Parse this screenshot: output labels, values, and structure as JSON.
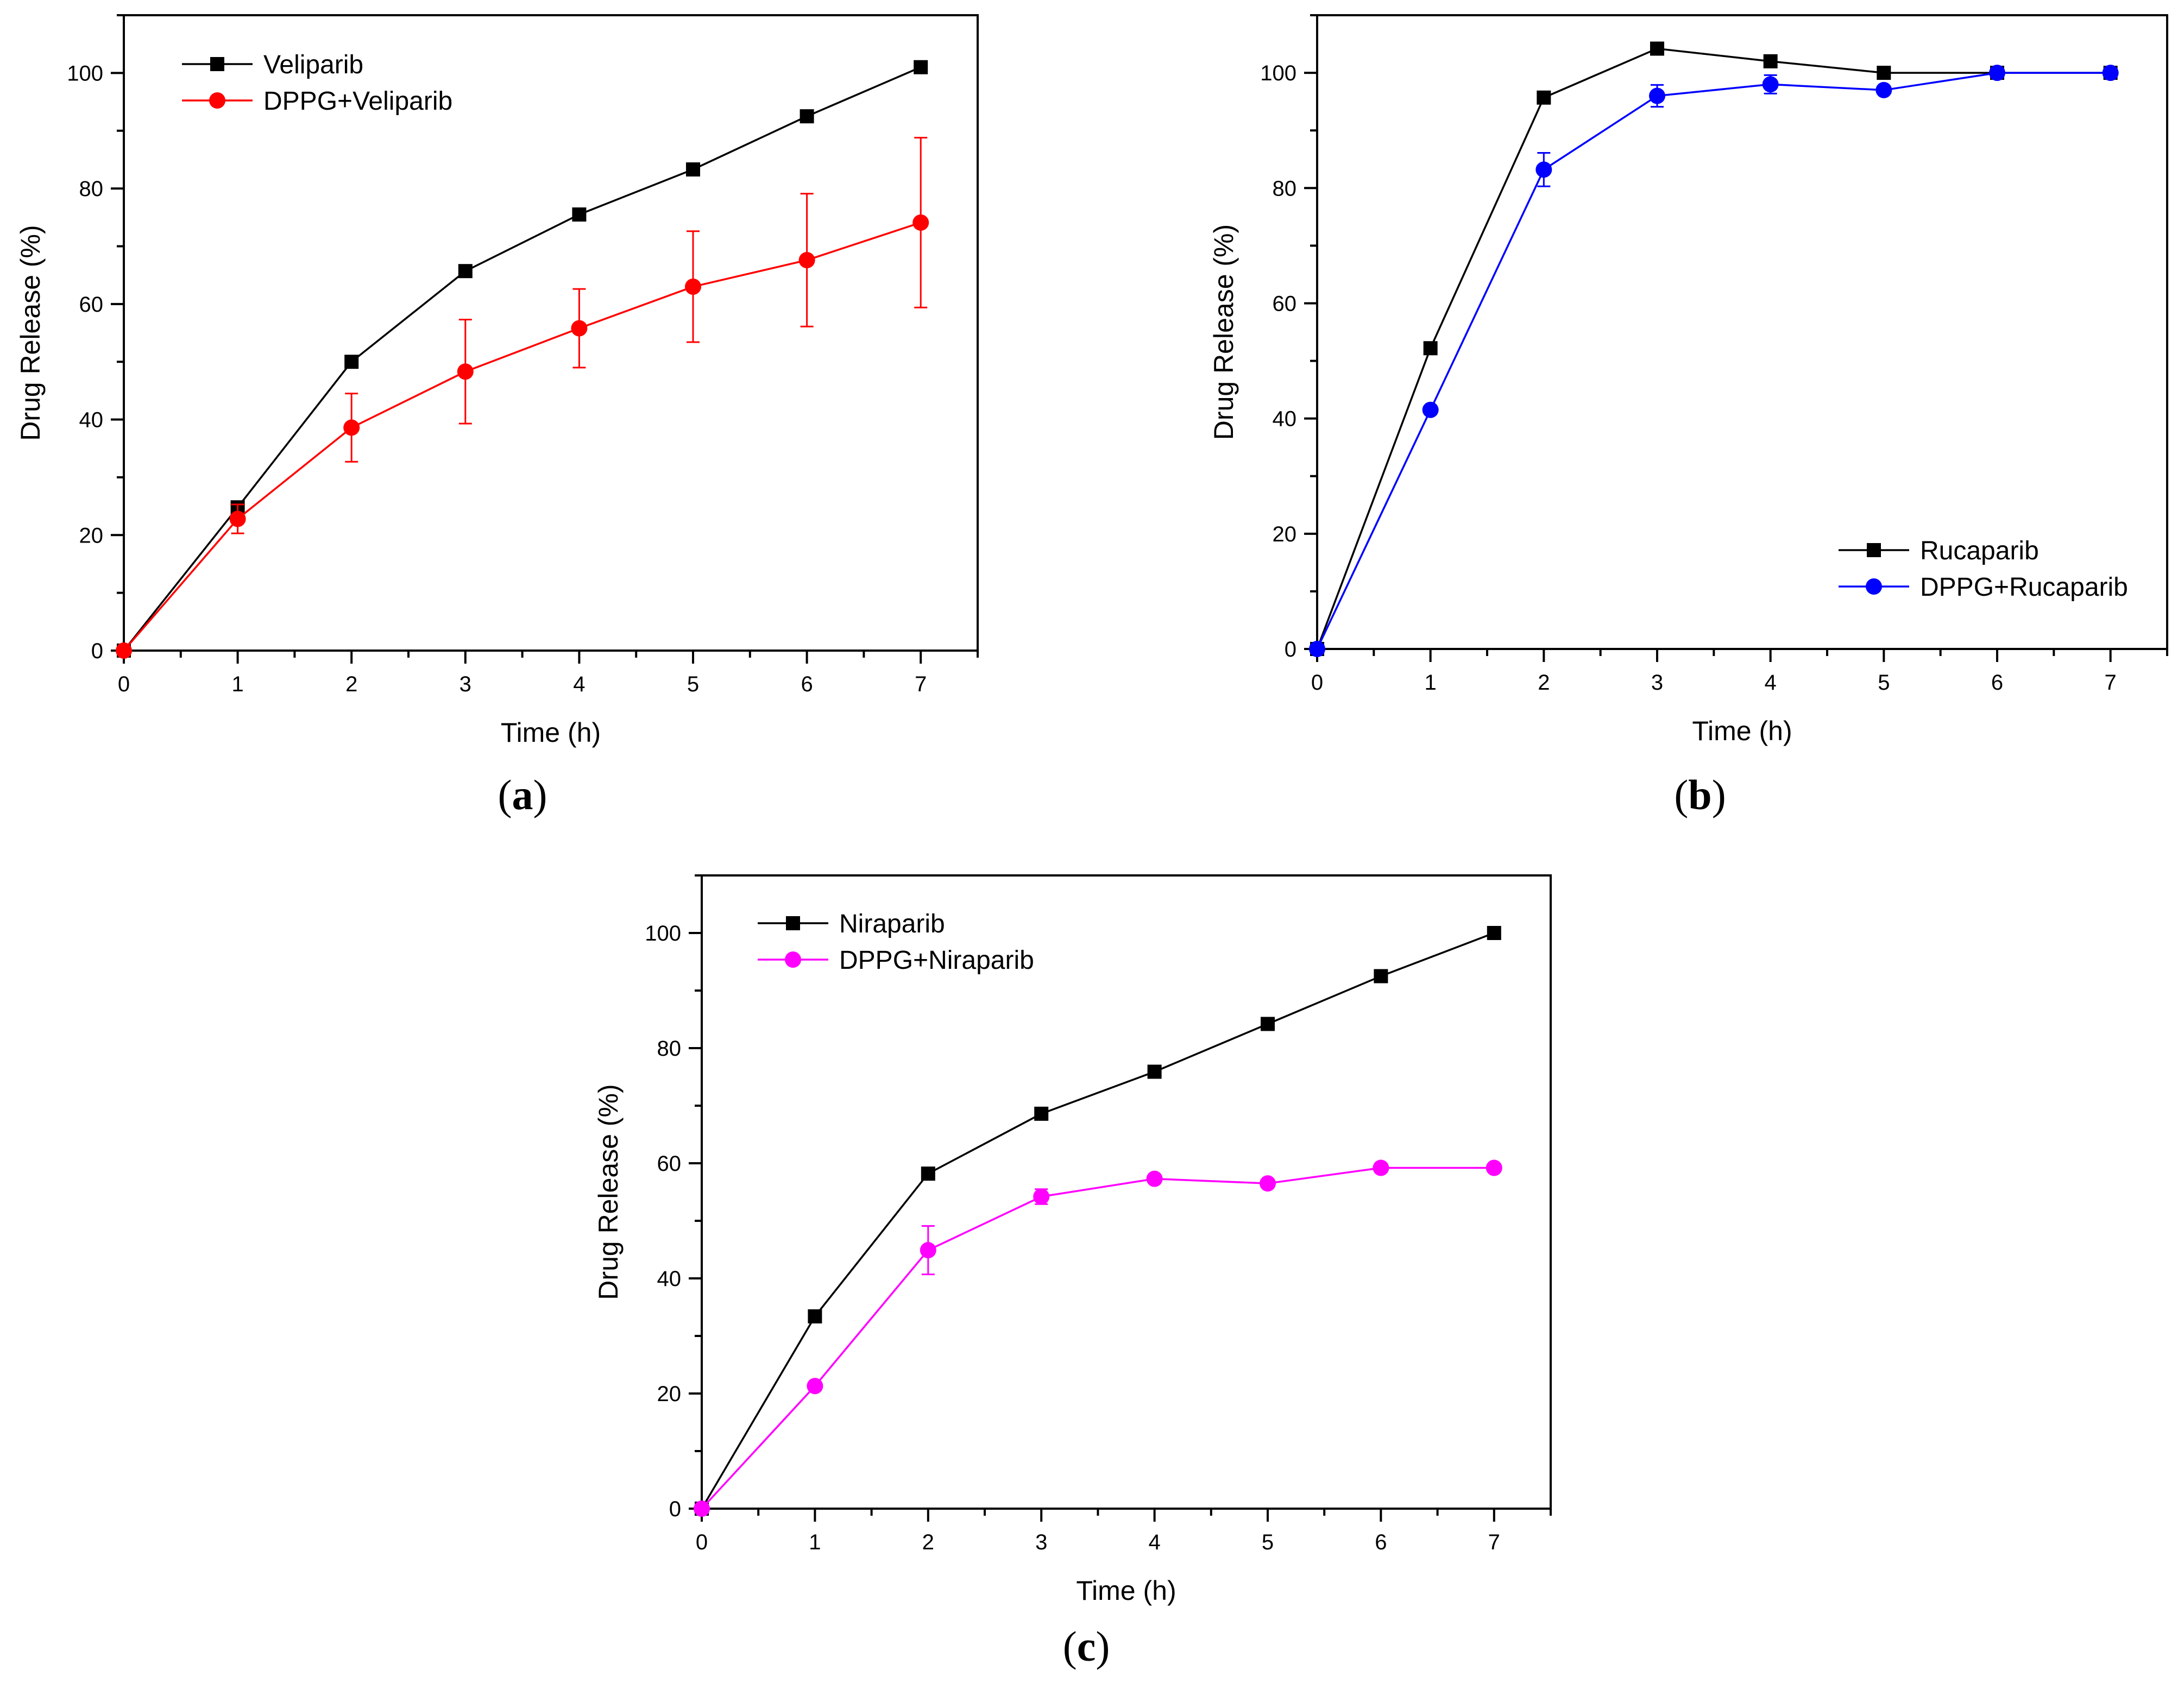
{
  "chart_data": [
    {
      "type": "line",
      "panel_label": "a",
      "title": "",
      "xlabel": "Time (h)",
      "ylabel": "Drug Release (%)",
      "xlim": [
        0,
        7.5
      ],
      "ylim": [
        0,
        110
      ],
      "xticks": [
        0,
        1,
        2,
        3,
        4,
        5,
        6,
        7
      ],
      "yticks": [
        0,
        20,
        40,
        60,
        80,
        100
      ],
      "legend_position": "top-left",
      "x": [
        0,
        1,
        2,
        3,
        4,
        5,
        6,
        7
      ],
      "series": [
        {
          "name": "Veliparib",
          "color": "#000000",
          "marker": "square",
          "values": [
            0,
            24.8,
            50.0,
            65.7,
            75.5,
            83.3,
            92.5,
            101.0
          ]
        },
        {
          "name": "DPPG+Veliparib",
          "color": "#ff0000",
          "marker": "circle",
          "values": [
            0,
            22.8,
            38.6,
            48.3,
            55.8,
            63.0,
            67.6,
            74.1
          ],
          "errors": [
            0,
            2.5,
            5.9,
            9.0,
            6.8,
            9.6,
            11.5,
            14.7
          ]
        }
      ]
    },
    {
      "type": "line",
      "panel_label": "b",
      "title": "",
      "xlabel": "Time (h)",
      "ylabel": "Drug Release (%)",
      "xlim": [
        0,
        7.5
      ],
      "ylim": [
        0,
        110
      ],
      "xticks": [
        0,
        1,
        2,
        3,
        4,
        5,
        6,
        7
      ],
      "yticks": [
        0,
        20,
        40,
        60,
        80,
        100
      ],
      "legend_position": "bottom-right",
      "x": [
        0,
        1,
        2,
        3,
        4,
        5,
        6,
        7
      ],
      "series": [
        {
          "name": "Rucaparib",
          "color": "#000000",
          "marker": "square",
          "values": [
            0,
            52.2,
            95.7,
            104.2,
            102.0,
            100.0,
            100.0,
            100.0
          ]
        },
        {
          "name": "DPPG+Rucaparib",
          "color": "#0000ff",
          "marker": "circle",
          "values": [
            0,
            41.5,
            83.2,
            96.0,
            98.0,
            97.0,
            100.0,
            100.0
          ],
          "errors": [
            0,
            0.6,
            2.9,
            1.9,
            1.6,
            0.5,
            0.5,
            0.5
          ]
        }
      ]
    },
    {
      "type": "line",
      "panel_label": "c",
      "title": "",
      "xlabel": "Time (h)",
      "ylabel": "Drug Release (%)",
      "xlim": [
        0,
        7.5
      ],
      "ylim": [
        0,
        110
      ],
      "xticks": [
        0,
        1,
        2,
        3,
        4,
        5,
        6,
        7
      ],
      "yticks": [
        0,
        20,
        40,
        60,
        80,
        100
      ],
      "legend_position": "top-left",
      "x": [
        0,
        1,
        2,
        3,
        4,
        5,
        6,
        7
      ],
      "series": [
        {
          "name": "Niraparib",
          "color": "#000000",
          "marker": "square",
          "values": [
            0,
            33.4,
            58.2,
            68.6,
            75.9,
            84.2,
            92.5,
            100.0
          ]
        },
        {
          "name": "DPPG+Niraparib",
          "color": "#ff00ff",
          "marker": "circle",
          "values": [
            0,
            21.3,
            44.9,
            54.2,
            57.3,
            56.5,
            59.2,
            59.2
          ],
          "errors": [
            0,
            0.6,
            4.2,
            1.3,
            0.6,
            0.6,
            0.6,
            0.6
          ]
        }
      ]
    }
  ]
}
